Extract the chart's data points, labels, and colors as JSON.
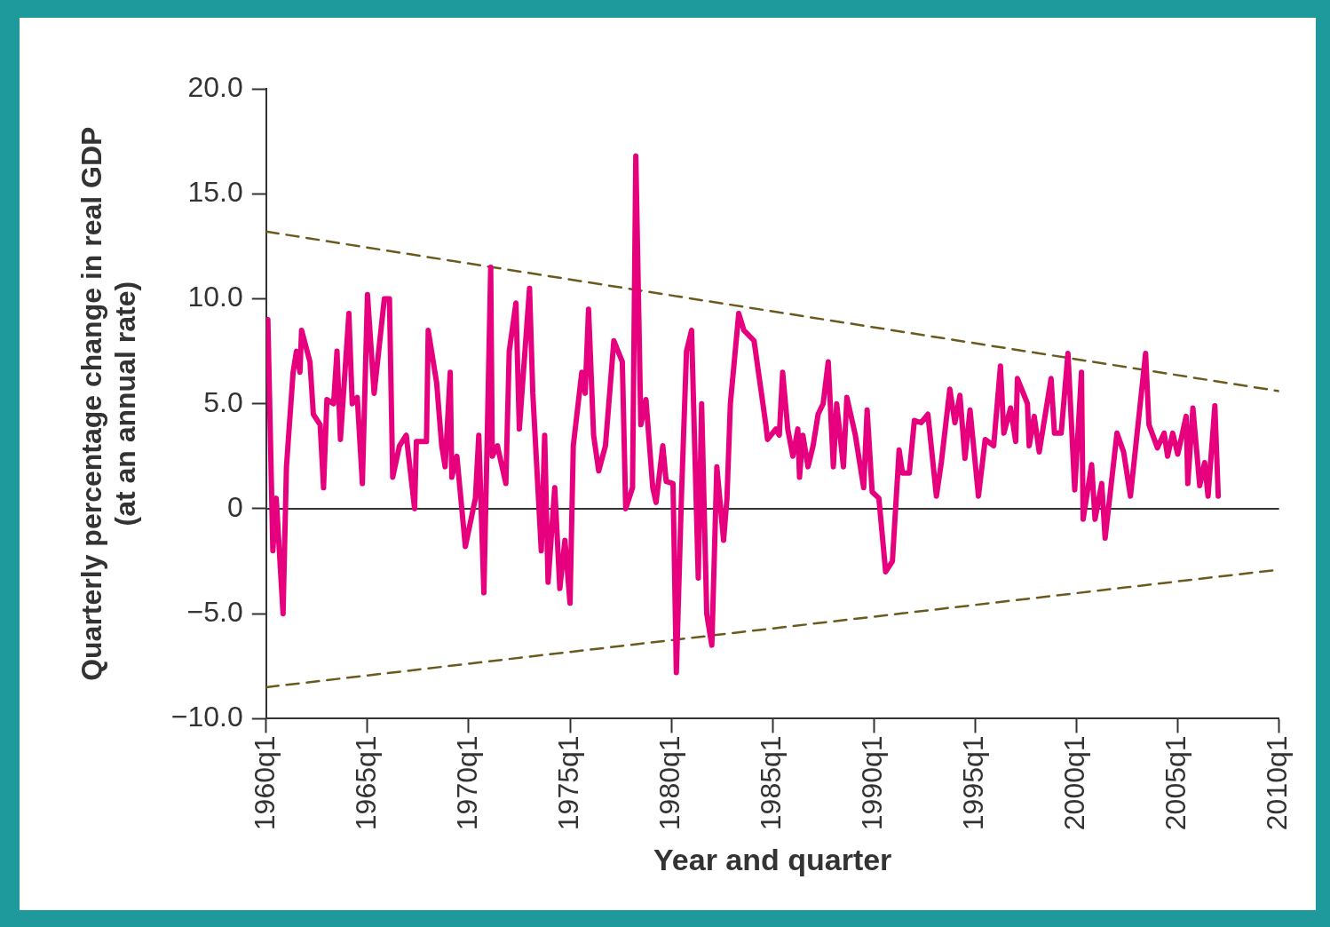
{
  "chart_data": {
    "type": "line",
    "xlabel": "Year and quarter",
    "ylabel": "Quarterly percentage change in real GDP\n(at an annual rate)",
    "xlim": [
      "1960-01",
      "2010-01"
    ],
    "xticks": [
      {
        "value": "1960-01",
        "label": "1960q1"
      },
      {
        "value": "1965-01",
        "label": "1965q1"
      },
      {
        "value": "1970-01",
        "label": "1970q1"
      },
      {
        "value": "1975-01",
        "label": "1975q1"
      },
      {
        "value": "1980-01",
        "label": "1980q1"
      },
      {
        "value": "1985-01",
        "label": "1985q1"
      },
      {
        "value": "1990-01",
        "label": "1990q1"
      },
      {
        "value": "1995-01",
        "label": "1995q1"
      },
      {
        "value": "2000-01",
        "label": "2000q1"
      },
      {
        "value": "2005-01",
        "label": "2005q1"
      },
      {
        "value": "2010-01",
        "label": "2010q1"
      }
    ],
    "ylim": [
      -10,
      20
    ],
    "yticks": [
      {
        "value": -10,
        "label": "−10.0"
      },
      {
        "value": -5,
        "label": "−5.0"
      },
      0,
      {
        "value": 5,
        "label": "5.0"
      },
      {
        "value": 10,
        "label": "10.0"
      },
      {
        "value": 15,
        "label": "15.0"
      },
      {
        "value": 20,
        "label": "20.0"
      }
    ],
    "ref_lines": [
      {
        "axis": "y",
        "value": 0,
        "color": "#333333"
      }
    ],
    "series": [
      {
        "type": "line",
        "color": "#e6007e",
        "line_style": "solid",
        "x": [
          "1960-02",
          "1960-05",
          "1960-07",
          "1960-11",
          "1961-01",
          "1961-05",
          "1961-07",
          "1961-09",
          "1961-10",
          "1962-03",
          "1962-05",
          "1962-09",
          "1962-11",
          "1963-01",
          "1963-05",
          "1963-07",
          "1963-09",
          "1964-02",
          "1964-04",
          "1964-07",
          "1964-10",
          "1965-01",
          "1965-05",
          "1965-09",
          "1965-11",
          "1966-02",
          "1966-04",
          "1966-08",
          "1966-12",
          "1967-05",
          "1967-06",
          "1967-12",
          "1968-01",
          "1968-06",
          "1968-09",
          "1968-11",
          "1969-02",
          "1969-03",
          "1969-06",
          "1969-11",
          "1970-05",
          "1970-07",
          "1970-10",
          "1970-12",
          "1971-02",
          "1971-03",
          "1971-06",
          "1971-11",
          "1972-01",
          "1972-05",
          "1972-07",
          "1973-01",
          "1973-03",
          "1973-08",
          "1973-10",
          "1973-12",
          "1974-04",
          "1974-07",
          "1974-10",
          "1975-01",
          "1975-03",
          "1975-08",
          "1975-10",
          "1975-12",
          "1976-03",
          "1976-06",
          "1976-10",
          "1977-03",
          "1977-08",
          "1977-10",
          "1978-02",
          "1978-04",
          "1978-07",
          "1978-10",
          "1979-02",
          "1979-04",
          "1979-08",
          "1979-10",
          "1980-02",
          "1980-04",
          "1980-07",
          "1980-10",
          "1981-01",
          "1981-05",
          "1981-07",
          "1981-10",
          "1982-01",
          "1982-04",
          "1982-08",
          "1982-10",
          "1982-12",
          "1983-05",
          "1983-08",
          "1984-02",
          "1984-09",
          "1984-10",
          "1985-03",
          "1985-05",
          "1985-07",
          "1985-10",
          "1986-01",
          "1986-04",
          "1986-05",
          "1986-07",
          "1986-10",
          "1987-01",
          "1987-04",
          "1987-07",
          "1987-10",
          "1988-01",
          "1988-03",
          "1988-07",
          "1988-09",
          "1989-02",
          "1989-04",
          "1989-07",
          "1989-09",
          "1989-12",
          "1990-04",
          "1990-08",
          "1990-12",
          "1991-04",
          "1991-06",
          "1991-10",
          "1992-01",
          "1992-05",
          "1992-09",
          "1993-02",
          "1993-05",
          "1993-10",
          "1994-01",
          "1994-04",
          "1994-07",
          "1994-10",
          "1995-03",
          "1995-07",
          "1995-12",
          "1996-04",
          "1996-06",
          "1996-10",
          "1997-01",
          "1997-02",
          "1997-08",
          "1997-09",
          "1997-12",
          "1998-03",
          "1998-10",
          "1998-12",
          "1999-04",
          "1999-08",
          "1999-12",
          "2000-04",
          "2000-05",
          "2000-10",
          "2000-12",
          "2001-04",
          "2001-06",
          "2002-01",
          "2002-05",
          "2002-09",
          "2003-06",
          "2003-08",
          "2004-01",
          "2004-05",
          "2004-07",
          "2004-10",
          "2005-01",
          "2005-06",
          "2005-07",
          "2005-10",
          "2006-02",
          "2006-05",
          "2006-07",
          "2006-11",
          "2007-01"
        ],
        "values": [
          9.0,
          -2.0,
          0.5,
          -5.0,
          2.0,
          6.5,
          7.5,
          6.5,
          8.5,
          7.0,
          4.5,
          4.0,
          1.0,
          5.2,
          5.0,
          7.5,
          3.3,
          9.3,
          5.0,
          5.3,
          1.2,
          10.2,
          5.5,
          8.5,
          10.0,
          10.0,
          1.5,
          3.0,
          3.5,
          0.0,
          3.2,
          3.2,
          8.5,
          6.0,
          3.0,
          2.0,
          6.5,
          1.5,
          2.5,
          -1.8,
          0.5,
          3.5,
          -4.0,
          3.5,
          11.5,
          2.5,
          3.0,
          1.2,
          7.5,
          9.8,
          3.8,
          10.5,
          5.5,
          -2.0,
          3.5,
          -3.5,
          1.0,
          -3.8,
          -1.5,
          -4.5,
          3.0,
          6.5,
          5.5,
          9.5,
          3.5,
          1.8,
          3.0,
          8.0,
          7.0,
          0.0,
          1.0,
          16.8,
          4.0,
          5.2,
          1.0,
          0.3,
          3.0,
          1.3,
          1.2,
          -7.8,
          0.5,
          7.5,
          8.5,
          -3.3,
          5.0,
          -5.0,
          -6.5,
          2.0,
          -1.5,
          0.5,
          5.0,
          9.3,
          8.5,
          8.0,
          4.0,
          3.3,
          3.8,
          3.5,
          6.5,
          3.8,
          2.5,
          3.8,
          1.5,
          3.5,
          2.0,
          3.0,
          4.5,
          5.0,
          7.0,
          2.0,
          5.0,
          2.0,
          5.3,
          3.5,
          2.5,
          1.0,
          4.7,
          0.8,
          0.5,
          -3.0,
          -2.5,
          2.8,
          1.7,
          1.7,
          4.2,
          4.1,
          4.5,
          0.6,
          2.2,
          5.7,
          4.1,
          5.4,
          2.4,
          4.7,
          0.6,
          3.3,
          3.0,
          6.8,
          3.6,
          4.8,
          3.2,
          6.2,
          5.0,
          3.0,
          4.4,
          2.7,
          6.2,
          3.6,
          3.6,
          7.4,
          0.9,
          6.5,
          -0.5,
          2.1,
          -0.5,
          1.2,
          -1.4,
          3.6,
          2.7,
          0.6,
          7.4,
          4.0,
          2.9,
          3.6,
          2.5,
          3.6,
          2.6,
          4.4,
          1.2,
          4.8,
          1.1,
          2.2,
          0.6,
          4.9,
          0.6
        ]
      },
      {
        "type": "line",
        "color": "#6b5a1e",
        "line_style": "dashed",
        "x": [
          "1960-01",
          "2010-01"
        ],
        "values": [
          13.2,
          5.6
        ]
      },
      {
        "type": "line",
        "color": "#6b5a1e",
        "line_style": "dashed",
        "x": [
          "1960-01",
          "2010-01"
        ],
        "values": [
          -8.5,
          -2.9
        ]
      }
    ]
  }
}
